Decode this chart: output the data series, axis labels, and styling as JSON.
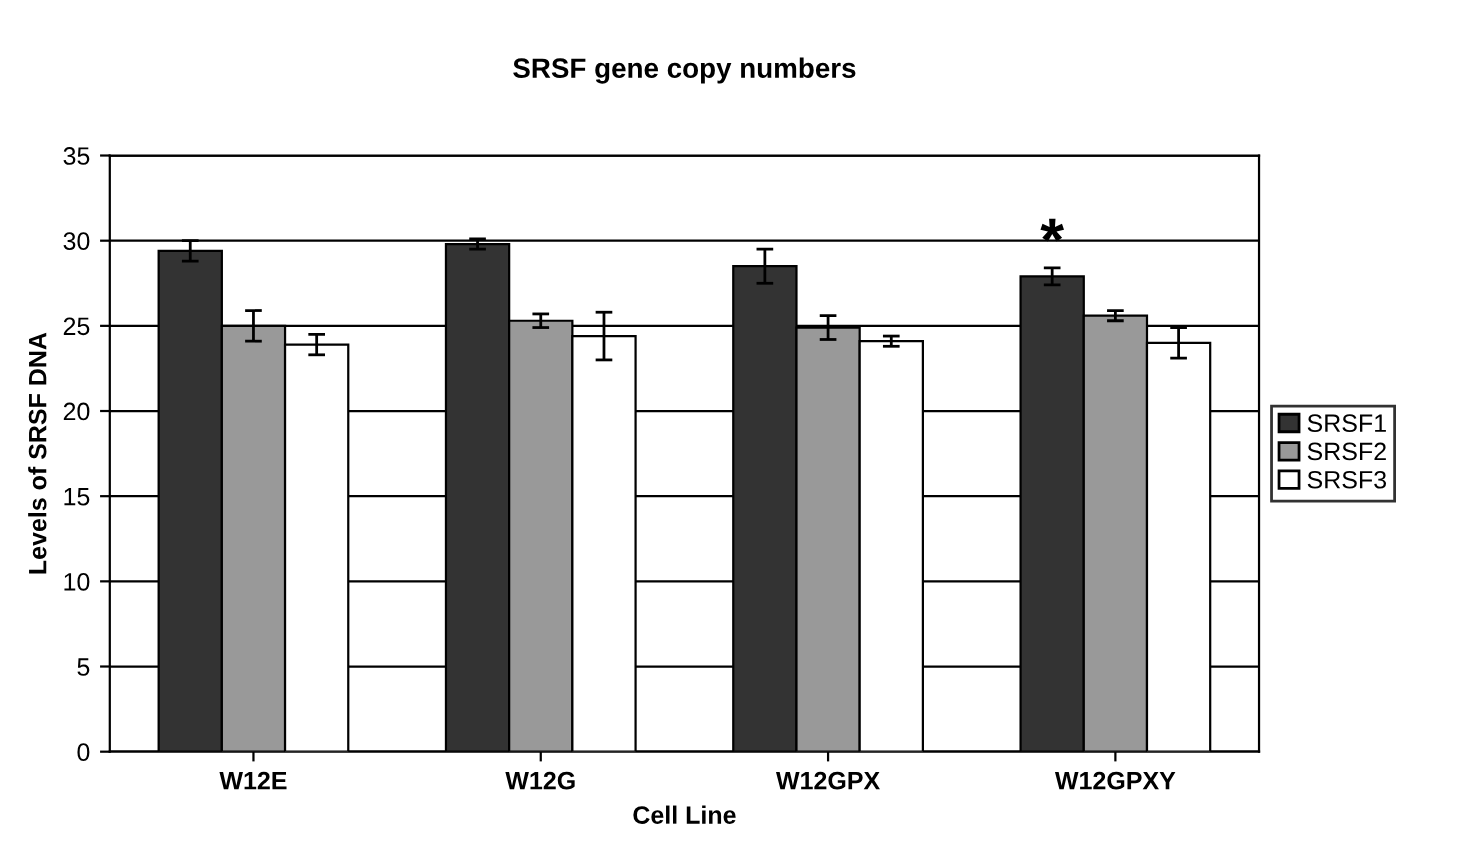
{
  "chart_data": {
    "type": "bar",
    "title": "SRSF gene copy numbers",
    "xlabel": "Cell Line",
    "ylabel": "Levels of SRSF DNA",
    "categories": [
      "W12E",
      "W12G",
      "W12GPX",
      "W12GPXY"
    ],
    "series": [
      {
        "name": "SRSF1",
        "color": "#333333",
        "values": [
          29.4,
          29.8,
          28.5,
          27.9
        ],
        "errors": [
          0.6,
          0.3,
          1.0,
          0.5
        ]
      },
      {
        "name": "SRSF2",
        "color": "#999999",
        "values": [
          25.0,
          25.3,
          24.9,
          25.6
        ],
        "errors": [
          0.9,
          0.4,
          0.7,
          0.3
        ]
      },
      {
        "name": "SRSF3",
        "color": "#ffffff",
        "values": [
          23.9,
          24.4,
          24.1,
          24.0
        ],
        "errors": [
          0.6,
          1.4,
          0.3,
          0.9
        ]
      }
    ],
    "annotations": [
      "*"
    ],
    "ylim": [
      0,
      35
    ],
    "yticks": [
      0,
      5,
      10,
      15,
      20,
      25,
      30,
      35
    ],
    "grid": "y",
    "legend": "right"
  }
}
